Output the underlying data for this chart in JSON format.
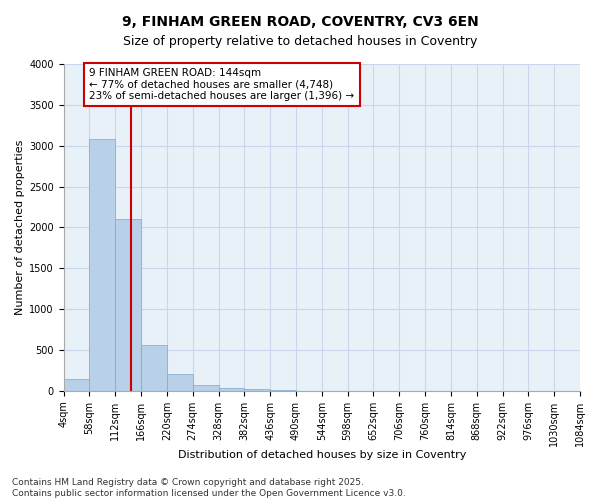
{
  "title": "9, FINHAM GREEN ROAD, COVENTRY, CV3 6EN",
  "subtitle": "Size of property relative to detached houses in Coventry",
  "xlabel": "Distribution of detached houses by size in Coventry",
  "ylabel": "Number of detached properties",
  "bar_color": "#b8d0e8",
  "bar_edge_color": "#7aaad0",
  "grid_color": "#c8d8ea",
  "background_color": "#e8f0f8",
  "property_size": 144,
  "property_line_color": "#cc0000",
  "annotation_text": "9 FINHAM GREEN ROAD: 144sqm\n← 77% of detached houses are smaller (4,748)\n23% of semi-detached houses are larger (1,396) →",
  "annotation_box_color": "#ffffff",
  "annotation_box_edge": "#cc0000",
  "bins": [
    4,
    58,
    112,
    166,
    220,
    274,
    328,
    382,
    436,
    490,
    544,
    598,
    652,
    706,
    760,
    814,
    868,
    922,
    976,
    1030,
    1084
  ],
  "bin_labels": [
    "4sqm",
    "58sqm",
    "112sqm",
    "166sqm",
    "220sqm",
    "274sqm",
    "328sqm",
    "382sqm",
    "436sqm",
    "490sqm",
    "544sqm",
    "598sqm",
    "652sqm",
    "706sqm",
    "760sqm",
    "814sqm",
    "868sqm",
    "922sqm",
    "976sqm",
    "1030sqm",
    "1084sqm"
  ],
  "bar_heights": [
    140,
    3080,
    2100,
    560,
    210,
    70,
    40,
    20,
    10,
    0,
    0,
    0,
    0,
    0,
    0,
    0,
    0,
    0,
    0,
    0
  ],
  "ylim": [
    0,
    4000
  ],
  "yticks": [
    0,
    500,
    1000,
    1500,
    2000,
    2500,
    3000,
    3500,
    4000
  ],
  "footer_text": "Contains HM Land Registry data © Crown copyright and database right 2025.\nContains public sector information licensed under the Open Government Licence v3.0.",
  "title_fontsize": 10,
  "subtitle_fontsize": 9,
  "axis_label_fontsize": 8,
  "tick_fontsize": 7,
  "annotation_fontsize": 7.5,
  "footer_fontsize": 6.5
}
